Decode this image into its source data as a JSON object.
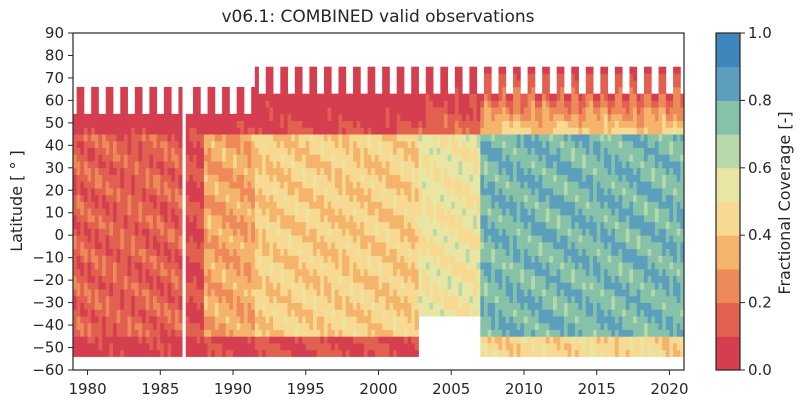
{
  "chart_data": {
    "type": "heatmap",
    "title": "v06.1: COMBINED valid observations",
    "xlabel": "",
    "ylabel": "Latitude [ ° ]",
    "xlim": [
      1979,
      2021
    ],
    "ylim": [
      -60,
      90
    ],
    "x_ticks": [
      1980,
      1985,
      1990,
      1995,
      2000,
      2005,
      2010,
      2015,
      2020
    ],
    "y_ticks": [
      -60,
      -50,
      -40,
      -30,
      -20,
      -10,
      0,
      10,
      20,
      30,
      40,
      50,
      60,
      70,
      80,
      90
    ],
    "grid": false,
    "colorbar": {
      "label": "Fractional Coverage [-]",
      "range": [
        0.0,
        1.0
      ],
      "ticks": [
        0.0,
        0.2,
        0.4,
        0.6,
        0.8,
        1.0
      ],
      "levels": 10,
      "colors": [
        "#d53e4f",
        "#e2604f",
        "#ee8a5a",
        "#f5b46b",
        "#f7d992",
        "#e8e6a2",
        "#b7d8a8",
        "#86c2a8",
        "#5c9fbd",
        "#3f86bc"
      ]
    },
    "eras": [
      {
        "start": 1979.0,
        "end": 1986.6,
        "coverage_mid": 0.15,
        "coverage_high": 0.05,
        "lat_min": -53,
        "lat_max": 61
      },
      {
        "start": 1986.7,
        "end": 1988.0,
        "coverage_mid": 0.1,
        "coverage_high": 0.05,
        "lat_min": -53,
        "lat_max": 61
      },
      {
        "start": 1988.0,
        "end": 1991.5,
        "coverage_mid": 0.32,
        "coverage_high": 0.08,
        "lat_min": -53,
        "lat_max": 61
      },
      {
        "start": 1991.5,
        "end": 2002.8,
        "coverage_mid": 0.42,
        "coverage_high": 0.1,
        "lat_min": -53,
        "lat_max": 68
      },
      {
        "start": 2002.8,
        "end": 2007.1,
        "coverage_mid": 0.52,
        "coverage_high": 0.2,
        "lat_min": -37,
        "lat_max": 68
      },
      {
        "start": 2007.1,
        "end": 2021.0,
        "coverage_mid": 0.78,
        "coverage_high": 0.45,
        "lat_min": -53,
        "lat_max": 70
      }
    ]
  }
}
